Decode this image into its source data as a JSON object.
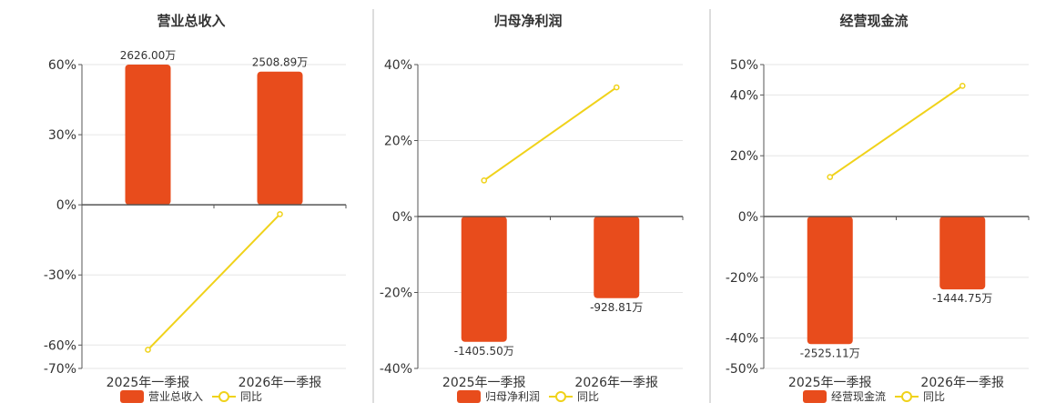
{
  "colors": {
    "bar": "#e84c1c",
    "line": "#f0d21a",
    "grid": "#e6e6e6",
    "axis": "#555555",
    "text": "#333333",
    "divider": "#bbbbbb"
  },
  "chart_data": [
    {
      "type": "bar",
      "title": "营业总收入",
      "categories": [
        "2025年一季报",
        "2026年一季报"
      ],
      "series": [
        {
          "name": "营业总收入",
          "type": "bar",
          "values": [
            60,
            57
          ],
          "labels": [
            "2626.00万",
            "2508.89万"
          ]
        },
        {
          "name": "同比",
          "type": "line",
          "values": [
            -62,
            -4
          ]
        }
      ],
      "yticks": [
        60,
        30,
        0,
        -30,
        -60,
        -70
      ],
      "ylim": [
        -70,
        60
      ],
      "ytick_suffix": "%",
      "grid": true,
      "legend": "bottom-center"
    },
    {
      "type": "bar",
      "title": "归母净利润",
      "categories": [
        "2025年一季报",
        "2026年一季报"
      ],
      "series": [
        {
          "name": "归母净利润",
          "type": "bar",
          "values": [
            -33,
            -21.5
          ],
          "labels": [
            "-1405.50万",
            "-928.81万"
          ]
        },
        {
          "name": "同比",
          "type": "line",
          "values": [
            9.5,
            34
          ]
        }
      ],
      "yticks": [
        40,
        20,
        0,
        -20,
        -40
      ],
      "ylim": [
        -40,
        40
      ],
      "ytick_suffix": "%",
      "grid": true,
      "legend": "bottom-center"
    },
    {
      "type": "bar",
      "title": "经营现金流",
      "categories": [
        "2025年一季报",
        "2026年一季报"
      ],
      "series": [
        {
          "name": "经营现金流",
          "type": "bar",
          "values": [
            -42,
            -24
          ],
          "labels": [
            "-2525.11万",
            "-1444.75万"
          ]
        },
        {
          "name": "同比",
          "type": "line",
          "values": [
            13,
            43
          ]
        }
      ],
      "yticks": [
        50,
        40,
        20,
        0,
        -20,
        -40,
        -50
      ],
      "ylim": [
        -50,
        50
      ],
      "ytick_suffix": "%",
      "grid": true,
      "legend": "bottom-center"
    }
  ]
}
